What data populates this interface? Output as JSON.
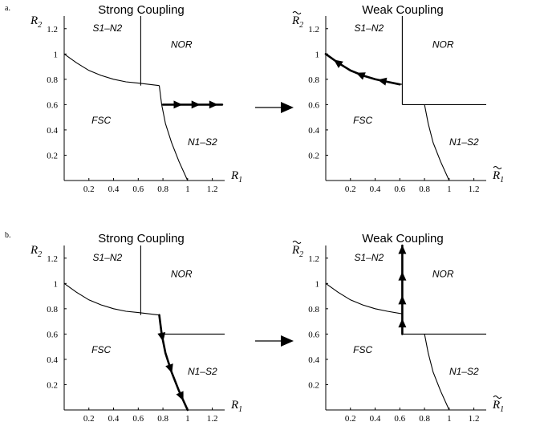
{
  "rows": [
    {
      "label": "a.",
      "panels": [
        {
          "title": "Strong Coupling",
          "xlabel": "R",
          "xsub": "1",
          "xtilde": false,
          "ylabel": "R",
          "ysub": "2",
          "ytilde": false,
          "xticks": [
            "0.2",
            "0.4",
            "0.6",
            "0.8",
            "1",
            "1.2"
          ],
          "yticks": [
            "0.2",
            "0.4",
            "0.6",
            "0.8",
            "1",
            "1.2"
          ],
          "regions": [
            "S1–N2",
            "NOR",
            "FSC",
            "N1–S2"
          ]
        },
        {
          "title": "Weak Coupling",
          "xlabel": "R",
          "xsub": "1",
          "xtilde": true,
          "ylabel": "R",
          "ysub": "2",
          "ytilde": true,
          "xticks": [
            "0.2",
            "0.4",
            "0.6",
            "0.8",
            "1",
            "1.2"
          ],
          "yticks": [
            "0.2",
            "0.4",
            "0.6",
            "0.8",
            "1",
            "1.2"
          ],
          "regions": [
            "S1–N2",
            "NOR",
            "FSC",
            "N1–S2"
          ]
        }
      ]
    },
    {
      "label": "b.",
      "panels": [
        {
          "title": "Strong Coupling",
          "xlabel": "R",
          "xsub": "1",
          "xtilde": false,
          "ylabel": "R",
          "ysub": "2",
          "ytilde": false,
          "xticks": [
            "0.2",
            "0.4",
            "0.6",
            "0.8",
            "1",
            "1.2"
          ],
          "yticks": [
            "0.2",
            "0.4",
            "0.6",
            "0.8",
            "1",
            "1.2"
          ],
          "regions": [
            "S1–N2",
            "NOR",
            "FSC",
            "N1–S2"
          ]
        },
        {
          "title": "Weak Coupling",
          "xlabel": "R",
          "xsub": "1",
          "xtilde": true,
          "ylabel": "R",
          "ysub": "2",
          "ytilde": true,
          "xticks": [
            "0.2",
            "0.4",
            "0.6",
            "0.8",
            "1",
            "1.2"
          ],
          "yticks": [
            "0.2",
            "0.4",
            "0.6",
            "0.8",
            "1",
            "1.2"
          ],
          "regions": [
            "S1–N2",
            "NOR",
            "FSC",
            "N1–S2"
          ]
        }
      ]
    }
  ],
  "diagram": {
    "axis_range": [
      0,
      1.3
    ],
    "panels": [
      {
        "boundaries": [
          [
            [
              0,
              1.0
            ],
            [
              0.1,
              0.93
            ],
            [
              0.2,
              0.87
            ],
            [
              0.3,
              0.83
            ],
            [
              0.4,
              0.8
            ],
            [
              0.5,
              0.78
            ],
            [
              0.6,
              0.77
            ],
            [
              0.77,
              0.75
            ]
          ],
          [
            [
              0.62,
              0.75
            ],
            [
              0.62,
              1.3
            ]
          ],
          [
            [
              0.77,
              0.75
            ],
            [
              0.79,
              0.6
            ],
            [
              0.82,
              0.45
            ],
            [
              0.87,
              0.3
            ],
            [
              0.93,
              0.15
            ],
            [
              1.0,
              0
            ]
          ]
        ],
        "flow": {
          "points": [
            [
              0.8,
              0.6
            ],
            [
              1.28,
              0.6
            ]
          ],
          "arrow_at": [
            0.25,
            0.55,
            0.85
          ],
          "direction": "right"
        }
      },
      {
        "boundaries": [
          [
            [
              0,
              1.0
            ],
            [
              0.1,
              0.93
            ],
            [
              0.2,
              0.87
            ],
            [
              0.3,
              0.83
            ],
            [
              0.4,
              0.8
            ],
            [
              0.5,
              0.78
            ],
            [
              0.62,
              0.76
            ]
          ],
          [
            [
              0.62,
              0.6
            ],
            [
              0.62,
              1.3
            ]
          ],
          [
            [
              0.62,
              0.6
            ],
            [
              1.3,
              0.6
            ]
          ],
          [
            [
              0.8,
              0.6
            ],
            [
              0.83,
              0.45
            ],
            [
              0.87,
              0.3
            ],
            [
              0.93,
              0.15
            ],
            [
              1.0,
              0
            ]
          ]
        ],
        "flow": {
          "points": [
            [
              0.6,
              0.76
            ],
            [
              0.5,
              0.78
            ],
            [
              0.4,
              0.8
            ],
            [
              0.3,
              0.83
            ],
            [
              0.2,
              0.87
            ],
            [
              0.1,
              0.93
            ],
            [
              0,
              1.0
            ]
          ],
          "arrow_at": [
            0.22,
            0.5,
            0.82
          ],
          "direction": "left"
        }
      },
      {
        "boundaries": [
          [
            [
              0,
              1.0
            ],
            [
              0.1,
              0.93
            ],
            [
              0.2,
              0.87
            ],
            [
              0.3,
              0.83
            ],
            [
              0.4,
              0.8
            ],
            [
              0.5,
              0.78
            ],
            [
              0.6,
              0.77
            ],
            [
              0.77,
              0.75
            ]
          ],
          [
            [
              0.62,
              0.75
            ],
            [
              0.62,
              1.3
            ]
          ],
          [
            [
              0.77,
              0.75
            ],
            [
              0.79,
              0.6
            ],
            [
              1.3,
              0.6
            ]
          ],
          [
            [
              0.79,
              0.6
            ],
            [
              0.82,
              0.45
            ],
            [
              0.87,
              0.3
            ],
            [
              0.93,
              0.15
            ],
            [
              1.0,
              0
            ]
          ]
        ],
        "flow": {
          "points": [
            [
              0.77,
              0.75
            ],
            [
              0.79,
              0.6
            ],
            [
              0.82,
              0.45
            ],
            [
              0.87,
              0.3
            ],
            [
              0.93,
              0.15
            ],
            [
              1.0,
              0
            ]
          ],
          "arrow_at": [
            0.22,
            0.55,
            0.85
          ],
          "direction": "down"
        }
      },
      {
        "boundaries": [
          [
            [
              0,
              1.0
            ],
            [
              0.1,
              0.93
            ],
            [
              0.2,
              0.87
            ],
            [
              0.3,
              0.83
            ],
            [
              0.4,
              0.8
            ],
            [
              0.5,
              0.78
            ],
            [
              0.62,
              0.76
            ]
          ],
          [
            [
              0.62,
              0.6
            ],
            [
              1.3,
              0.6
            ]
          ],
          [
            [
              0.8,
              0.6
            ],
            [
              0.83,
              0.45
            ],
            [
              0.87,
              0.3
            ],
            [
              0.93,
              0.15
            ],
            [
              1.0,
              0
            ]
          ]
        ],
        "flow": {
          "points": [
            [
              0.62,
              0.6
            ],
            [
              0.62,
              1.3
            ]
          ],
          "arrow_at": [
            0.12,
            0.38,
            0.65,
            0.95
          ],
          "direction": "up"
        }
      }
    ]
  }
}
